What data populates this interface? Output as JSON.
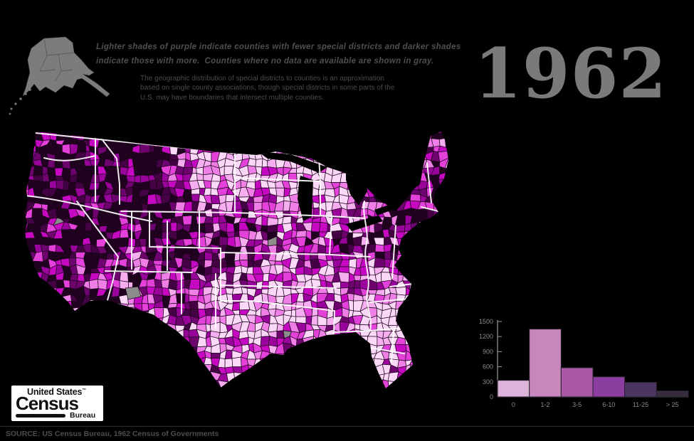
{
  "title_year": "1962",
  "annotations": {
    "legend_italic": "Lighter shades of purple indicate counties with fewer special districts and darker shades indicate those with more.  Counties where no data are available are shown in gray.",
    "method_note": "The geographic distribution of special districts to counties is an approximation based on single county associations, though special districts in some parts of the U.S. may have boundaries that intersect multiple counties."
  },
  "logo": {
    "line1": "United States",
    "tm": "™",
    "line2": "Census",
    "line3": "Bureau"
  },
  "source_line": "SOURCE: US Census Bureau, 1962 Census of Governments",
  "map": {
    "subject": "Special districts per county, United States",
    "no_data_color": "#8c8c8c",
    "state_border_color": "#ffffff",
    "county_border_color": "#1a0219",
    "alaska_color": "#7c7c7c",
    "county_palette": [
      "#fbd7f8",
      "#f6aef1",
      "#ef7fe7",
      "#e341d9",
      "#c708c2",
      "#9a039b",
      "#6e026e",
      "#440144",
      "#200120"
    ]
  },
  "chart_data": {
    "type": "bar",
    "title": "",
    "xlabel": "",
    "ylabel": "",
    "categories": [
      "0",
      "1-2",
      "3-5",
      "6-10",
      "11-25",
      "> 25"
    ],
    "values": [
      330,
      1350,
      580,
      400,
      290,
      120
    ],
    "bar_colors": [
      "#dcb4da",
      "#c687bc",
      "#a958a8",
      "#8c3da0",
      "#4d3562",
      "#372c3e"
    ],
    "bar_outline": "#26222a",
    "ylim": [
      0,
      1500
    ],
    "yticks": [
      0,
      300,
      600,
      900,
      1200,
      1500
    ],
    "axis_color": "#999999",
    "tick_label_color": "#8a8a8a",
    "grid": false,
    "legend": "none"
  }
}
